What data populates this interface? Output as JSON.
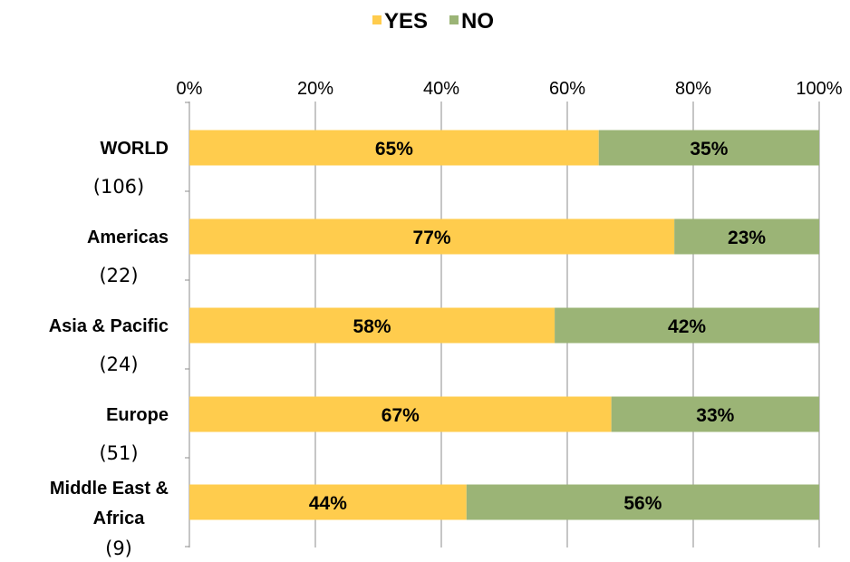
{
  "chart_data": {
    "type": "bar",
    "orientation": "horizontal",
    "stacked": true,
    "categories": [
      {
        "name": "WORLD",
        "count": "(106)"
      },
      {
        "name": "Americas",
        "count": "(22)"
      },
      {
        "name": "Asia & Pacific",
        "count": "(24)"
      },
      {
        "name": "Europe",
        "count": "(51)"
      },
      {
        "name": "Middle East & Africa",
        "count": "(9)"
      }
    ],
    "series": [
      {
        "name": "YES",
        "color": "#FFCC4D",
        "values": [
          65,
          77,
          58,
          67,
          44
        ],
        "labels": [
          "65%",
          "77%",
          "58%",
          "67%",
          "44%"
        ]
      },
      {
        "name": "NO",
        "color": "#9BB476",
        "values": [
          35,
          23,
          42,
          33,
          56
        ],
        "labels": [
          "35%",
          "23%",
          "42%",
          "33%",
          "56%"
        ]
      }
    ],
    "xlim": [
      0,
      100
    ],
    "x_ticks": [
      "0%",
      "20%",
      "40%",
      "60%",
      "80%",
      "100%"
    ],
    "x_axis_position": "top",
    "grid": true,
    "legend_position": "top-center"
  }
}
